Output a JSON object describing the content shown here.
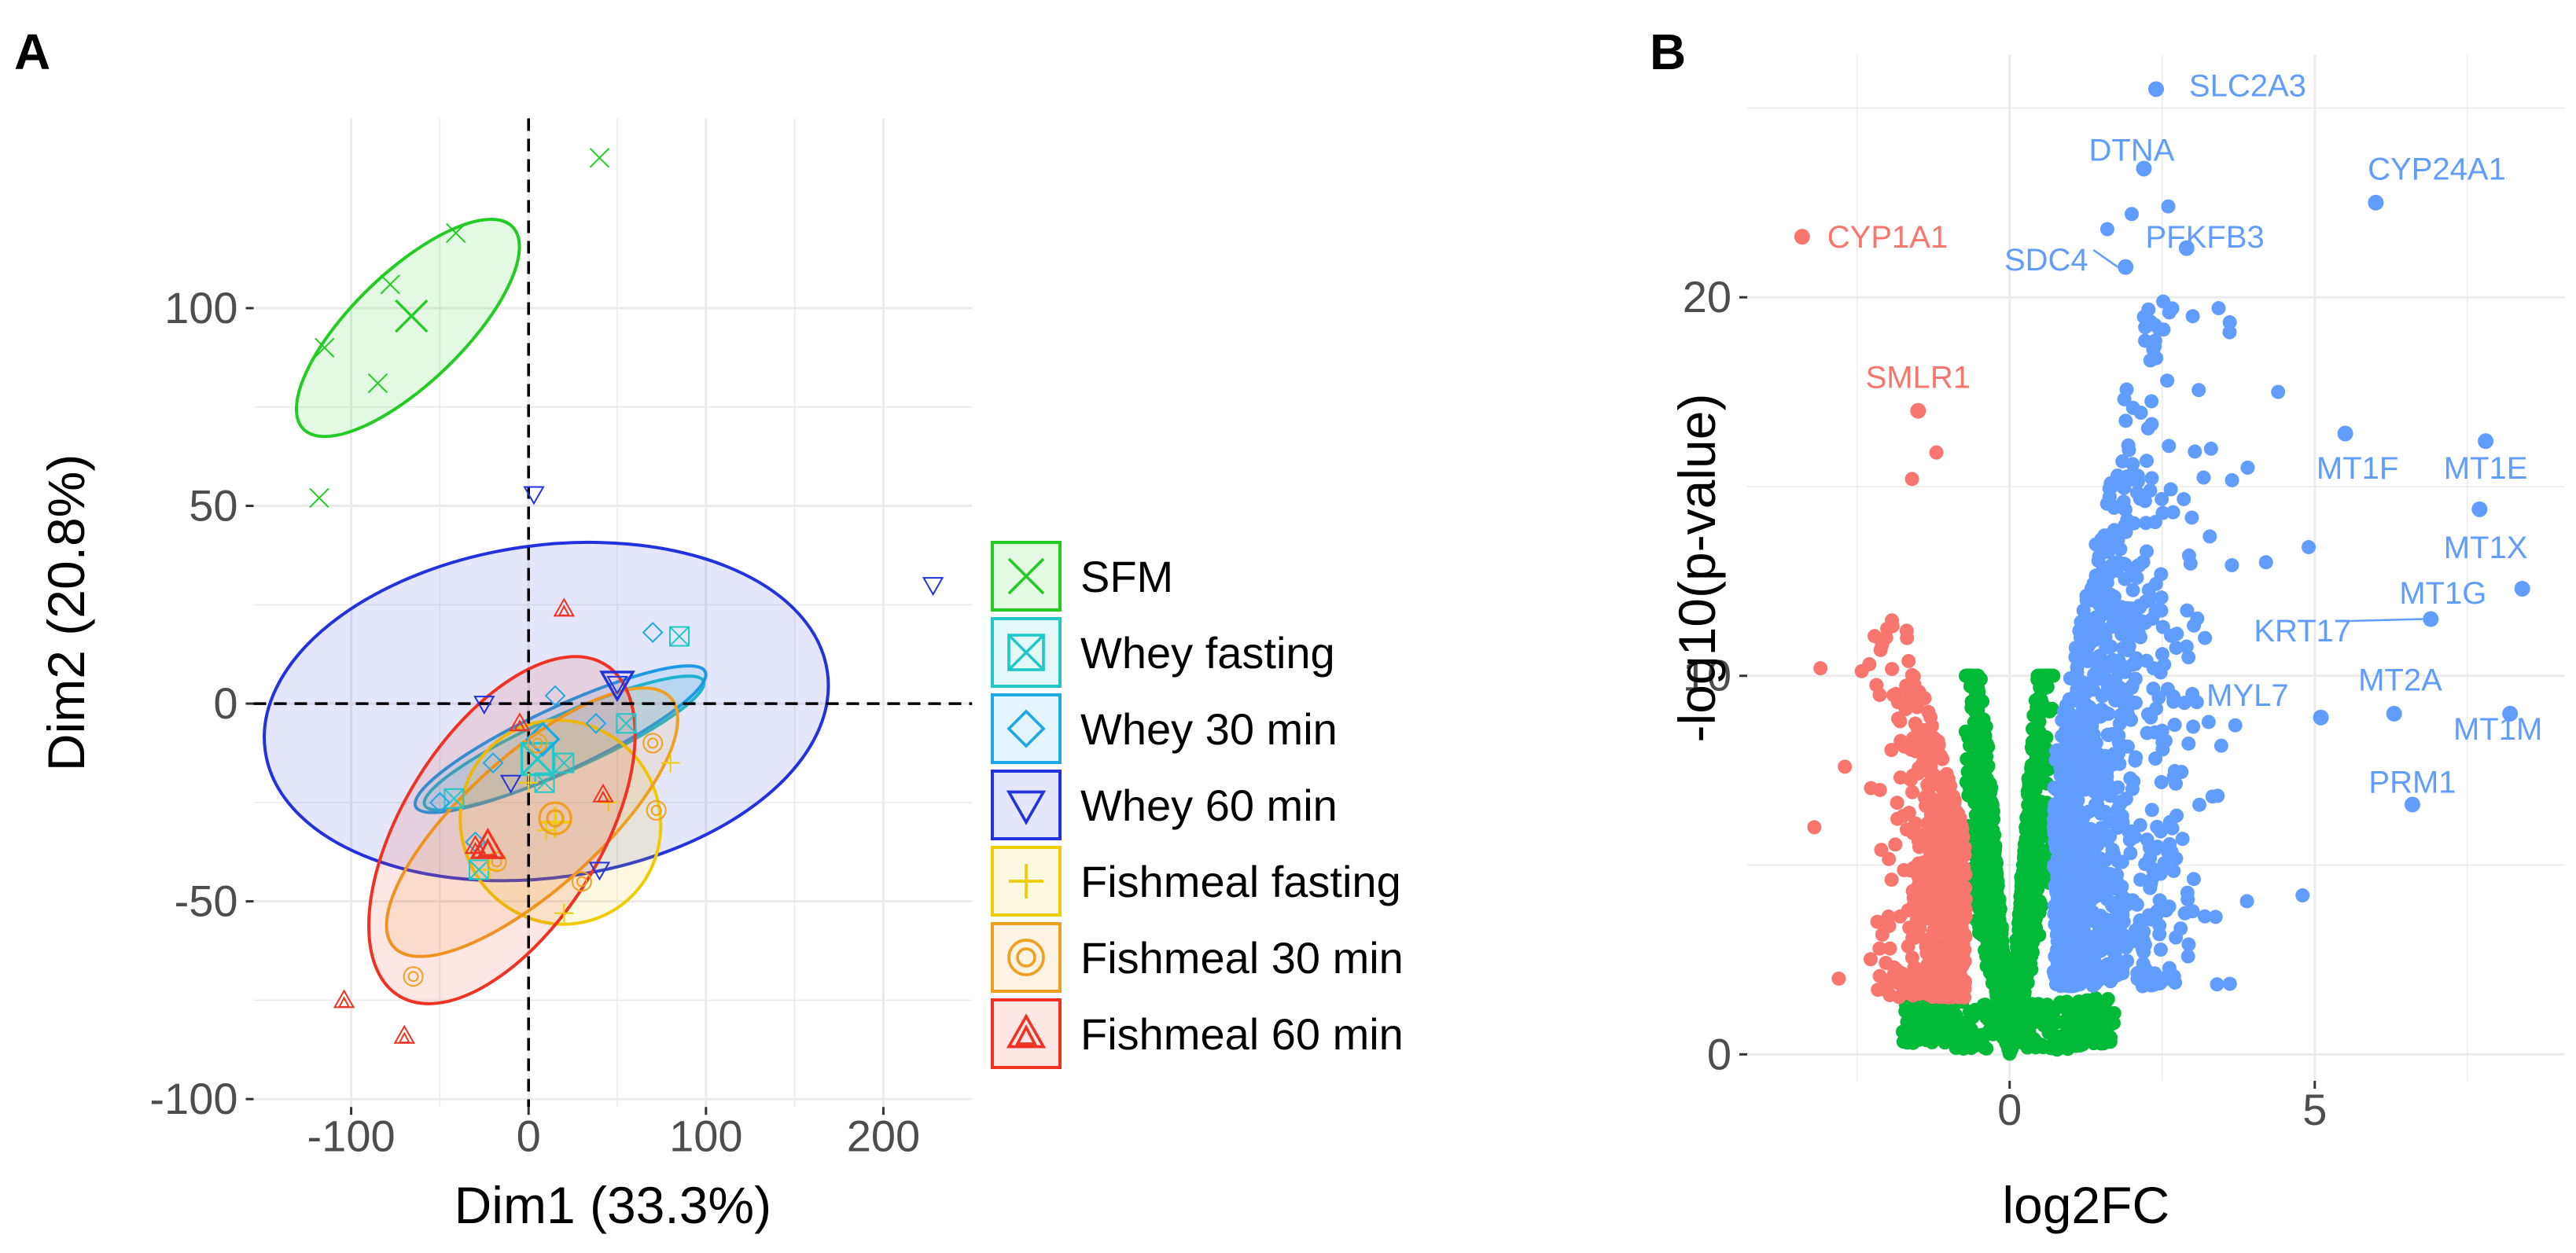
{
  "panel_a_label": "A",
  "panel_b_label": "B",
  "colors": {
    "grid": "#ebebeb",
    "up": "#619cff",
    "down": "#f8766d",
    "ns": "#00ba38"
  },
  "chart_data": [
    {
      "type": "scatter",
      "subtype": "pca",
      "xlabel": "Dim1 (33.3%)",
      "ylabel": "Dim2 (20.8%)",
      "xlim": [
        -155,
        250
      ],
      "ylim": [
        -102,
        148
      ],
      "x_ticks": [
        -100,
        0,
        100,
        200
      ],
      "x_tick_labels": [
        "-100",
        "0",
        "100",
        "200"
      ],
      "y_ticks": [
        -100,
        -50,
        0,
        50,
        100
      ],
      "y_tick_labels": [
        "-100",
        "-50",
        "0",
        "50",
        "100"
      ],
      "legend_position": "right",
      "groups": [
        {
          "name": "SFM",
          "color": "#22cc22",
          "marker": "x",
          "centroid": [
            -66,
            98
          ],
          "ellipse": {
            "cx": -68,
            "cy": 95,
            "rx": 82,
            "ry": 14,
            "angle_deg": 44
          },
          "points": [
            [
              -115,
              90
            ],
            [
              -85,
              81
            ],
            [
              -78,
              106
            ],
            [
              -41,
              119
            ],
            [
              40,
              138
            ],
            [
              -118,
              52
            ]
          ]
        },
        {
          "name": "Whey fasting",
          "color": "#22c8c8",
          "marker": "boxed-x",
          "centroid": [
            5,
            -14
          ],
          "ellipse": {
            "cx": 20,
            "cy": -10,
            "rx": 86,
            "ry": 7,
            "angle_deg": 24
          },
          "points": [
            [
              -42,
              -24
            ],
            [
              -28,
              -42
            ],
            [
              9,
              -20
            ],
            [
              55,
              -5
            ],
            [
              85,
              17
            ],
            [
              20,
              -15
            ]
          ]
        },
        {
          "name": "Whey 30 min",
          "color": "#1ea8e8",
          "marker": "diamond",
          "centroid": [
            8,
            -9
          ],
          "ellipse": {
            "cx": 18,
            "cy": -9,
            "rx": 90,
            "ry": 8,
            "angle_deg": 25
          },
          "points": [
            [
              -50,
              -25
            ],
            [
              -20,
              -15
            ],
            [
              15,
              2
            ],
            [
              38,
              -5
            ],
            [
              70,
              18
            ],
            [
              -30,
              -35
            ]
          ]
        },
        {
          "name": "Whey 60 min",
          "color": "#2233dd",
          "marker": "triangle-down",
          "centroid": [
            50,
            5
          ],
          "ellipse": {
            "cx": 10,
            "cy": -2,
            "rx": 160,
            "ry": 42,
            "angle_deg": 8
          },
          "points": [
            [
              3,
              53
            ],
            [
              -25,
              0
            ],
            [
              228,
              30
            ],
            [
              -10,
              -20
            ],
            [
              40,
              -42
            ],
            [
              50,
              5
            ]
          ]
        },
        {
          "name": "Fishmeal fasting",
          "color": "#eecc00",
          "marker": "plus",
          "centroid": [
            15,
            -30
          ],
          "ellipse": {
            "cx": 18,
            "cy": -30,
            "rx": 56,
            "ry": 26,
            "angle_deg": 30
          },
          "points": [
            [
              -22,
              -42
            ],
            [
              0,
              -20
            ],
            [
              10,
              -32
            ],
            [
              20,
              -53
            ],
            [
              45,
              -25
            ],
            [
              80,
              -15
            ]
          ]
        },
        {
          "name": "Fishmeal 30 min",
          "color": "#f0a020",
          "marker": "double-circle",
          "centroid": [
            15,
            -29
          ],
          "ellipse": {
            "cx": 2,
            "cy": -30,
            "rx": 105,
            "ry": 17,
            "angle_deg": 42
          },
          "points": [
            [
              -65,
              -69
            ],
            [
              -18,
              -40
            ],
            [
              5,
              -10
            ],
            [
              30,
              -45
            ],
            [
              70,
              -10
            ],
            [
              72,
              -27
            ]
          ]
        },
        {
          "name": "Fishmeal 60 min",
          "color": "#ee3322",
          "marker": "double-triangle",
          "centroid": [
            -23,
            -36
          ],
          "ellipse": {
            "cx": -15,
            "cy": -32,
            "rx": 110,
            "ry": 25,
            "angle_deg": 58
          },
          "points": [
            [
              -104,
              -75
            ],
            [
              -70,
              -84
            ],
            [
              -30,
              -36
            ],
            [
              20,
              24
            ],
            [
              42,
              -23
            ],
            [
              -5,
              -5
            ]
          ]
        }
      ]
    },
    {
      "type": "scatter",
      "subtype": "volcano",
      "xlabel": "log2FC",
      "ylabel": "-log10(p-value)",
      "xlim": [
        -4.3,
        9.1
      ],
      "ylim": [
        -0.7,
        26.4
      ],
      "x_ticks": [
        0,
        5
      ],
      "x_tick_labels": [
        "0",
        "5"
      ],
      "y_ticks": [
        0,
        10,
        20
      ],
      "y_tick_labels": [
        "0",
        "10",
        "20"
      ],
      "labeled_genes": [
        {
          "name": "SLC2A3",
          "x": 2.4,
          "y": 25.5,
          "dir": "up",
          "label_at": [
            3.9,
            25.6
          ],
          "leader": false
        },
        {
          "name": "DTNA",
          "x": 2.2,
          "y": 23.4,
          "dir": "up",
          "label_at": [
            2.0,
            23.9
          ],
          "leader": false
        },
        {
          "name": "CYP24A1",
          "x": 6.0,
          "y": 22.5,
          "dir": "up",
          "label_at": [
            7.0,
            23.4
          ],
          "leader": false
        },
        {
          "name": "PFKFB3",
          "x": 2.9,
          "y": 21.3,
          "dir": "up",
          "label_at": [
            3.2,
            21.6
          ],
          "leader": false
        },
        {
          "name": "SDC4",
          "x": 1.9,
          "y": 20.8,
          "dir": "up",
          "label_at": [
            0.6,
            21.0
          ],
          "leader": true
        },
        {
          "name": "CYP1A1",
          "x": -3.4,
          "y": 21.6,
          "dir": "down",
          "label_at": [
            -2.0,
            21.6
          ],
          "leader": false
        },
        {
          "name": "SMLR1",
          "x": -1.5,
          "y": 17.0,
          "dir": "down",
          "label_at": [
            -1.5,
            17.9
          ],
          "leader": false
        },
        {
          "name": "MT1F",
          "x": 5.5,
          "y": 16.4,
          "dir": "up",
          "label_at": [
            5.7,
            15.5
          ],
          "leader": false
        },
        {
          "name": "MT1E",
          "x": 7.8,
          "y": 16.2,
          "dir": "up",
          "label_at": [
            7.8,
            15.5
          ],
          "leader": false
        },
        {
          "name": "MT1X",
          "x": 7.7,
          "y": 14.4,
          "dir": "up",
          "label_at": [
            7.8,
            13.4
          ],
          "leader": false
        },
        {
          "name": "MT1G",
          "x": 8.4,
          "y": 12.3,
          "dir": "up",
          "label_at": [
            7.1,
            12.2
          ],
          "leader": false
        },
        {
          "name": "KRT17",
          "x": 6.9,
          "y": 11.5,
          "dir": "up",
          "label_at": [
            4.8,
            11.2
          ],
          "leader": true
        },
        {
          "name": "MYL7",
          "x": 5.1,
          "y": 8.9,
          "dir": "up",
          "label_at": [
            3.9,
            9.5
          ],
          "leader": false
        },
        {
          "name": "MT2A",
          "x": 6.3,
          "y": 9.0,
          "dir": "up",
          "label_at": [
            6.4,
            9.9
          ],
          "leader": false
        },
        {
          "name": "MT1M",
          "x": 8.2,
          "y": 9.0,
          "dir": "up",
          "label_at": [
            8.0,
            8.6
          ],
          "leader": false
        },
        {
          "name": "PRM1",
          "x": 6.6,
          "y": 6.6,
          "dir": "up",
          "label_at": [
            6.6,
            7.2
          ],
          "leader": false
        }
      ]
    }
  ]
}
